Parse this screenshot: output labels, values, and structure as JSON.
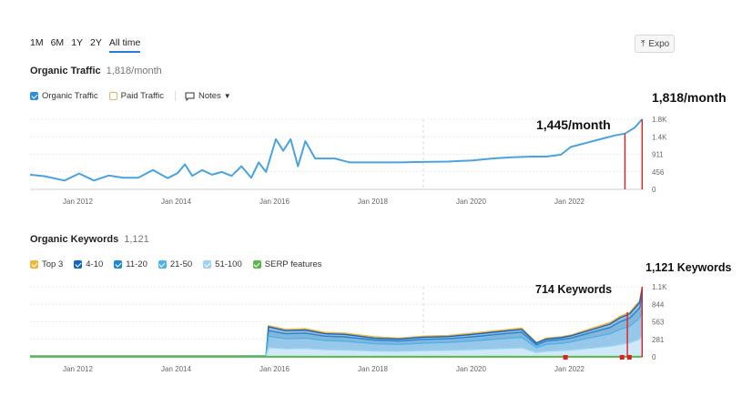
{
  "range_tabs": [
    "1M",
    "6M",
    "1Y",
    "2Y",
    "All time"
  ],
  "active_range": "All time",
  "export_label": "Expo",
  "traffic": {
    "title": "Organic Traffic",
    "value": "1,818/month",
    "legend": {
      "organic": "Organic Traffic",
      "paid": "Paid Traffic",
      "notes": "Notes"
    },
    "annotations": {
      "end": "1,818/month",
      "mid": "1,445/month"
    }
  },
  "keywords": {
    "title": "Organic Keywords",
    "value": "1,121",
    "legend": [
      "Top 3",
      "4-10",
      "11-20",
      "21-50",
      "51-100",
      "SERP features"
    ],
    "annotations": {
      "end": "1,121 Keywords",
      "mid": "714 Keywords"
    }
  },
  "colors": {
    "traffic_line": "#4aa3df",
    "top3": "#f0b53a",
    "k4_10": "#1565c0",
    "k11_20": "#1e88d8",
    "k21_50": "#4fb3ea",
    "k51_100": "#9ed2f5",
    "serp": "#58b947",
    "marker": "#e02020"
  },
  "chart_data": [
    {
      "type": "line",
      "title": "Organic Traffic",
      "x_tick_labels": [
        "Jan 2012",
        "Jan 2014",
        "Jan 2016",
        "Jan 2018",
        "Jan 2020",
        "Jan 2022"
      ],
      "y_tick_labels": [
        "1.8K",
        "1.4K",
        "911",
        "456",
        "0"
      ],
      "ylim": [
        0,
        1818
      ],
      "x": [
        2011.0,
        2011.3,
        2011.7,
        2012.0,
        2012.3,
        2012.6,
        2012.9,
        2013.2,
        2013.5,
        2013.8,
        2014.0,
        2014.15,
        2014.3,
        2014.5,
        2014.7,
        2014.9,
        2015.1,
        2015.3,
        2015.5,
        2015.65,
        2015.8,
        2016.0,
        2016.15,
        2016.3,
        2016.45,
        2016.6,
        2016.8,
        2017.0,
        2017.2,
        2017.5,
        2018.0,
        2018.5,
        2019.0,
        2019.5,
        2020.0,
        2020.4,
        2020.8,
        2021.2,
        2021.5,
        2021.8,
        2022.0,
        2022.3,
        2022.6,
        2022.9,
        2023.1,
        2023.3,
        2023.45
      ],
      "series": [
        {
          "values": [
            380,
            340,
            230,
            410,
            230,
            360,
            300,
            300,
            500,
            290,
            420,
            650,
            350,
            500,
            380,
            450,
            350,
            600,
            300,
            700,
            450,
            1300,
            1000,
            1300,
            600,
            1250,
            800,
            800,
            800,
            700,
            700,
            700,
            710,
            720,
            750,
            800,
            830,
            850,
            850,
            900,
            1100,
            1200,
            1300,
            1400,
            1445,
            1600,
            1818
          ]
        }
      ],
      "grid": true
    },
    {
      "type": "area",
      "title": "Organic Keywords",
      "x_tick_labels": [
        "Jan 2012",
        "Jan 2014",
        "Jan 2016",
        "Jan 2018",
        "Jan 2020",
        "Jan 2022"
      ],
      "y_tick_labels": [
        "1.1K",
        "844",
        "563",
        "281",
        "0"
      ],
      "ylim": [
        0,
        1121
      ],
      "x": [
        2011.0,
        2013.0,
        2015.0,
        2015.8,
        2015.85,
        2016.2,
        2016.6,
        2017.0,
        2017.4,
        2018.0,
        2018.5,
        2019.0,
        2019.5,
        2020.0,
        2020.5,
        2021.0,
        2021.3,
        2021.5,
        2021.8,
        2022.0,
        2022.4,
        2022.8,
        2023.0,
        2023.2,
        2023.4,
        2023.45
      ],
      "series": [
        {
          "name": "Top 3",
          "values": [
            15,
            15,
            15,
            18,
            500,
            440,
            450,
            390,
            380,
            320,
            300,
            330,
            340,
            380,
            420,
            460,
            230,
            300,
            320,
            350,
            450,
            550,
            650,
            714,
            900,
            1121
          ]
        },
        {
          "name": "4-10",
          "values": [
            13,
            13,
            13,
            16,
            480,
            420,
            430,
            370,
            360,
            300,
            285,
            315,
            325,
            360,
            400,
            440,
            220,
            285,
            305,
            335,
            430,
            525,
            625,
            690,
            870,
            1090
          ]
        },
        {
          "name": "11-20",
          "values": [
            11,
            11,
            11,
            14,
            420,
            370,
            380,
            330,
            320,
            270,
            255,
            280,
            290,
            320,
            360,
            395,
            190,
            255,
            275,
            300,
            385,
            470,
            560,
            620,
            780,
            980
          ]
        },
        {
          "name": "21-50",
          "values": [
            9,
            9,
            9,
            12,
            330,
            290,
            300,
            260,
            250,
            210,
            200,
            220,
            230,
            255,
            285,
            315,
            150,
            200,
            215,
            240,
            305,
            370,
            440,
            490,
            620,
            780
          ]
        },
        {
          "name": "51-100",
          "values": [
            6,
            6,
            6,
            8,
            150,
            130,
            135,
            115,
            110,
            95,
            90,
            100,
            105,
            115,
            130,
            145,
            70,
            90,
            100,
            110,
            140,
            170,
            200,
            225,
            285,
            360
          ]
        },
        {
          "name": "SERP features",
          "values": [
            2,
            2,
            2,
            2,
            2,
            2,
            2,
            2,
            2,
            2,
            2,
            2,
            2,
            2,
            2,
            2,
            2,
            2,
            2,
            2,
            2,
            2,
            2,
            2,
            2,
            2
          ]
        }
      ],
      "grid": true
    }
  ]
}
